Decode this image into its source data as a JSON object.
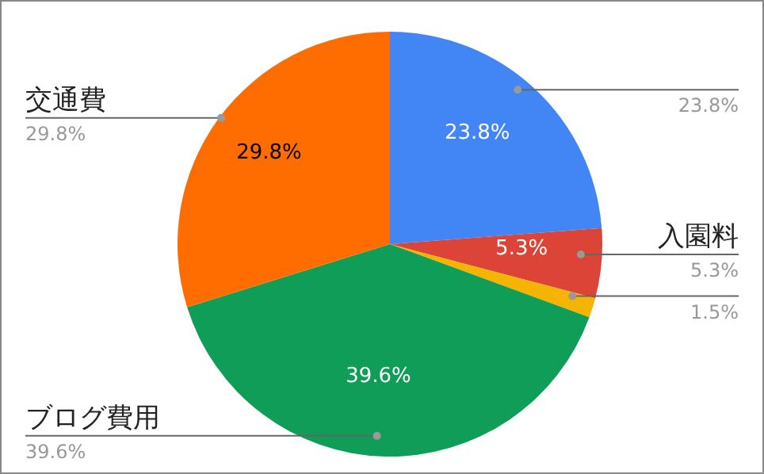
{
  "chart_data": {
    "type": "pie",
    "categories": [
      null,
      "入園料",
      null,
      "ブログ費用",
      "交通費"
    ],
    "values": [
      23.8,
      5.3,
      1.5,
      39.6,
      29.8
    ],
    "colors": [
      "#4285f4",
      "#db4437",
      "#f4b400",
      "#0f9d58",
      "#ff6d01"
    ],
    "value_labels": [
      "23.8%",
      "5.3%",
      "1.5%",
      "39.6%",
      "29.8%"
    ]
  }
}
